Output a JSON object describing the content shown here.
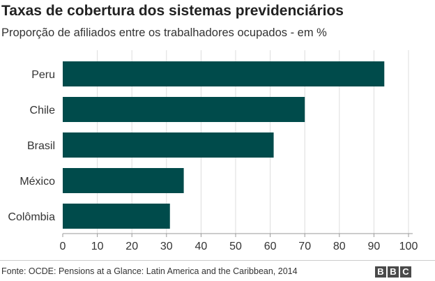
{
  "header": {
    "title": "Taxas de cobertura dos sistemas previdenciários",
    "subtitle": "Proporção de afiliados entre os trabalhadores ocupados - em %"
  },
  "footer": {
    "source": "Fonte: OCDE: Pensions at a Glance: Latin America and the Caribbean, 2014",
    "logo_letters": [
      "B",
      "B",
      "C"
    ]
  },
  "colors": {
    "bar": "#004b4b",
    "grid": "#dddddd",
    "axis": "#999999"
  },
  "chart_data": {
    "type": "bar",
    "orientation": "horizontal",
    "categories": [
      "Peru",
      "Chile",
      "Brasil",
      "México",
      "Colômbia"
    ],
    "values": [
      93,
      70,
      61,
      35,
      31
    ],
    "xlim": [
      0,
      100
    ],
    "xticks": [
      0,
      10,
      20,
      30,
      40,
      50,
      60,
      70,
      80,
      90,
      100
    ],
    "grid": true,
    "legend": "none",
    "title": "Taxas de cobertura dos sistemas previdenciários",
    "subtitle": "Proporção de afiliados entre os trabalhadores ocupados - em %"
  }
}
